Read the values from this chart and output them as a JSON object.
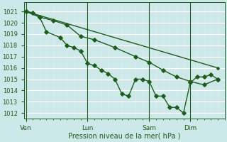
{
  "background_color": "#cce8e8",
  "grid_color": "#b8d8d8",
  "minor_grid_color": "#d0e8e8",
  "line_color": "#1e5c1e",
  "marker_color": "#1e5c1e",
  "ylabel_ticks": [
    1012,
    1013,
    1014,
    1015,
    1016,
    1017,
    1018,
    1019,
    1020,
    1021
  ],
  "ylim": [
    1011.5,
    1021.8
  ],
  "xlabel": "Pression niveau de la mer( hPa )",
  "day_labels": [
    "Ven",
    "Lun",
    "Sam",
    "Dim"
  ],
  "day_positions": [
    0,
    9,
    18,
    24
  ],
  "xlim": [
    -0.3,
    29
  ],
  "series1_x": [
    0,
    1,
    2,
    3,
    5,
    6,
    7,
    8,
    9,
    10,
    11,
    12,
    13,
    14,
    15,
    16,
    17,
    18,
    19,
    20,
    21,
    22,
    23,
    24,
    25,
    26,
    27,
    28
  ],
  "series1_y": [
    1021.0,
    1020.9,
    1020.5,
    1019.2,
    1018.7,
    1018.0,
    1017.8,
    1017.5,
    1016.4,
    1016.2,
    1015.8,
    1015.5,
    1015.0,
    1013.7,
    1013.5,
    1015.0,
    1015.0,
    1014.8,
    1013.5,
    1013.5,
    1012.5,
    1012.5,
    1012.0,
    1014.7,
    1015.2,
    1015.2,
    1015.4,
    1015.0
  ],
  "series2_x": [
    0,
    2,
    4,
    6,
    8,
    10,
    13,
    16,
    18,
    20,
    22,
    24,
    26,
    28
  ],
  "series2_y": [
    1021.0,
    1020.5,
    1020.2,
    1019.8,
    1018.8,
    1018.5,
    1017.8,
    1017.0,
    1016.5,
    1015.8,
    1015.2,
    1014.8,
    1014.5,
    1015.0
  ],
  "series3_x": [
    0,
    28
  ],
  "series3_y": [
    1021.0,
    1016.0
  ]
}
